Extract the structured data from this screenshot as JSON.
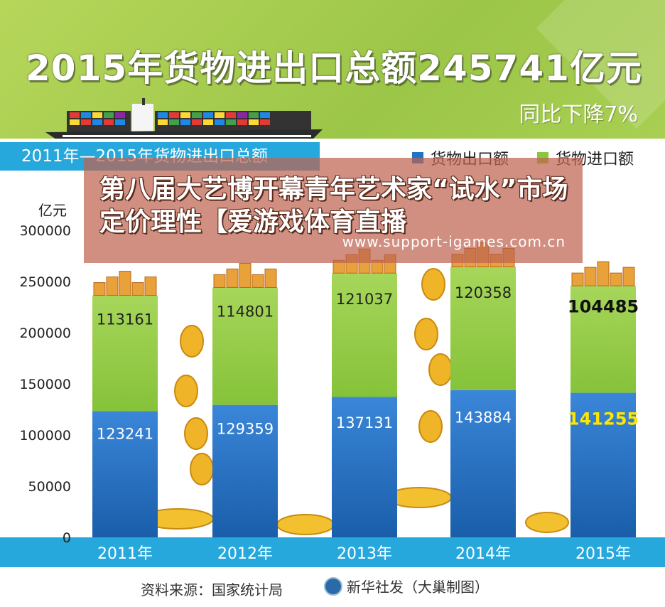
{
  "header": {
    "title": "2015年货物进出口总额245741亿元",
    "subtitle": "同比下降7%"
  },
  "band_label": "2011年—2015年货物进出口总额",
  "unit_label": "亿元",
  "legend": [
    {
      "label": "货物出口额",
      "color": "#1f74c4"
    },
    {
      "label": "货物进口额",
      "color": "#8cc63f"
    }
  ],
  "overlay": {
    "title": "第八届大艺博开幕青年艺术家“试水”市场定价理性【爱游戏体育直播",
    "url": "www.support-igames.com.cn"
  },
  "footer": {
    "source": "资料来源：国家统计局",
    "credit": "新华社发（大巢制图）"
  },
  "colors": {
    "header_green": "#9cc648",
    "band_blue": "#27a8dd",
    "export_blue": "#1f74c4",
    "import_green": "#8cc63f",
    "highlight_yellow": "#ffe600",
    "coin_gold": "#f0b428"
  },
  "chart_data": {
    "type": "bar",
    "stacked": true,
    "categories": [
      "2011年",
      "2012年",
      "2013年",
      "2014年",
      "2015年"
    ],
    "series": [
      {
        "name": "货物出口额",
        "values": [
          123241,
          129359,
          137131,
          143884,
          141255
        ]
      },
      {
        "name": "货物进口额",
        "values": [
          113161,
          114801,
          121037,
          120358,
          104485
        ]
      }
    ],
    "ylabel": "亿元",
    "ylim": [
      0,
      300000
    ],
    "yticks": [
      0,
      50000,
      100000,
      150000,
      200000,
      250000,
      300000
    ],
    "legend_position": "top-right",
    "highlight_category": "2015年"
  }
}
